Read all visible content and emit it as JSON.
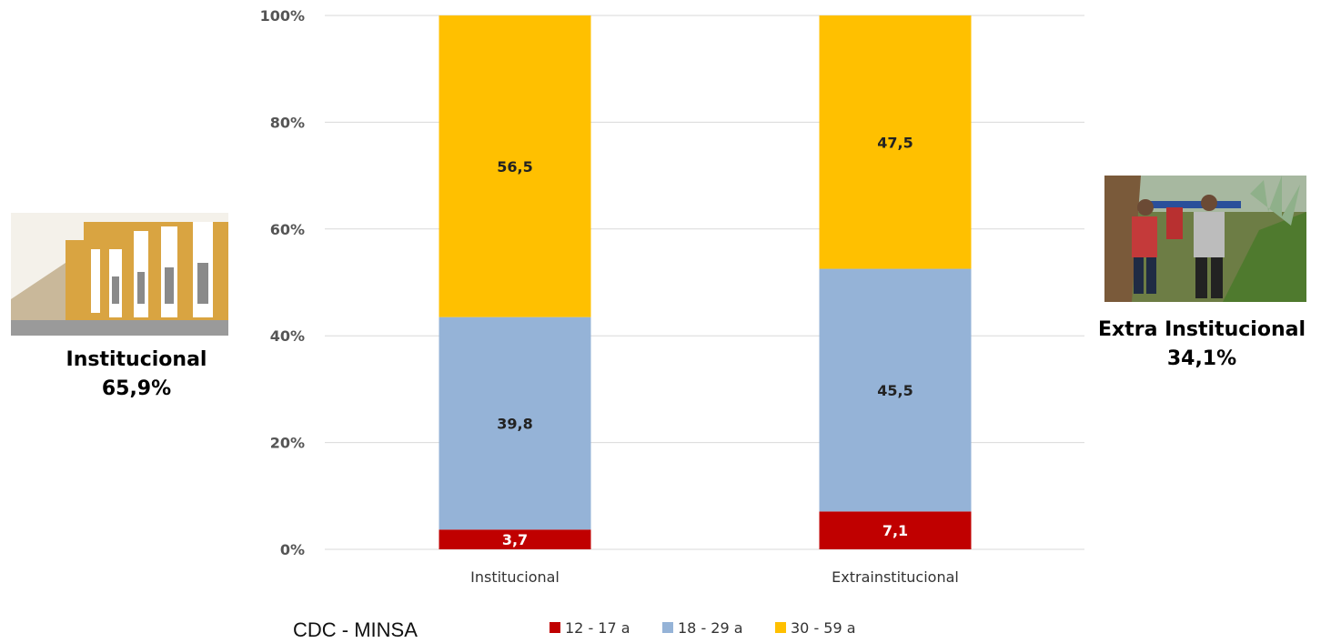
{
  "chart_data": {
    "type": "bar",
    "stacked": true,
    "normalized": true,
    "categories": [
      "Institucional",
      "Extrainstitucional"
    ],
    "series": [
      {
        "name": "12 - 17 a",
        "values": [
          3.7,
          7.1
        ],
        "labels": [
          "3,7",
          "7,1"
        ],
        "color": "#c00000",
        "label_color": "#ffffff"
      },
      {
        "name": "18 - 29 a",
        "values": [
          39.8,
          45.5
        ],
        "labels": [
          "39,8",
          "45,5"
        ],
        "color": "#95b3d7",
        "label_color": "#222222"
      },
      {
        "name": "30 - 59 a",
        "values": [
          56.5,
          47.5
        ],
        "labels": [
          "56,5",
          "47,5"
        ],
        "color": "#ffc000",
        "label_color": "#222222"
      }
    ],
    "yticks": [
      "0%",
      "20%",
      "40%",
      "60%",
      "80%",
      "100%"
    ],
    "ylim": [
      0,
      100
    ],
    "grid": true,
    "legend_position": "bottom"
  },
  "panels": {
    "left": {
      "title": "Institucional",
      "value": "65,9%",
      "image": "hospital-building-photo"
    },
    "right": {
      "title": "Extra Institucional",
      "value": "34,1%",
      "image": "stretcher-rescue-photo"
    }
  },
  "source": "CDC -  MINSA"
}
